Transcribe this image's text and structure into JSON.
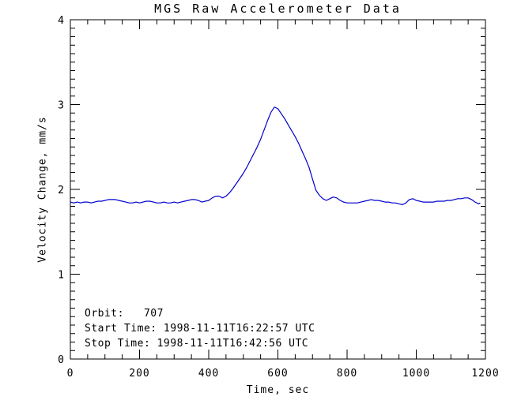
{
  "chart_data": {
    "type": "line",
    "title": "MGS Raw Accelerometer Data",
    "xlabel": "Time, sec",
    "ylabel": "Velocity Change, mm/s",
    "xlim": [
      0,
      1200
    ],
    "ylim": [
      0,
      4
    ],
    "xticks": [
      0,
      200,
      400,
      600,
      800,
      1000,
      1200
    ],
    "yticks": [
      0,
      1,
      2,
      3,
      4
    ],
    "x_minor_tick_step": 50,
    "y_minor_tick_step": 0.1,
    "grid": false,
    "legend": "none",
    "line_color": "#0000cd",
    "axis_color": "#000000",
    "background_color": "#ffffff",
    "annotations": [
      "Orbit:   707",
      "Start Time: 1998-11-11T16:22:57 UTC",
      "Stop Time: 1998-11-11T16:42:56 UTC"
    ],
    "series": [
      {
        "name": "velocity-change",
        "x": [
          0,
          10,
          20,
          30,
          40,
          50,
          60,
          70,
          80,
          90,
          100,
          110,
          120,
          130,
          140,
          150,
          160,
          170,
          180,
          190,
          200,
          210,
          220,
          230,
          240,
          250,
          260,
          270,
          280,
          290,
          300,
          310,
          320,
          330,
          340,
          350,
          360,
          370,
          380,
          390,
          400,
          410,
          420,
          430,
          440,
          450,
          460,
          470,
          480,
          490,
          500,
          510,
          520,
          530,
          540,
          550,
          560,
          570,
          580,
          590,
          600,
          610,
          620,
          630,
          640,
          650,
          660,
          670,
          680,
          690,
          700,
          710,
          720,
          730,
          740,
          750,
          760,
          770,
          780,
          790,
          800,
          810,
          820,
          830,
          840,
          850,
          860,
          870,
          880,
          890,
          900,
          910,
          920,
          930,
          940,
          950,
          960,
          970,
          980,
          990,
          1000,
          1010,
          1020,
          1030,
          1040,
          1050,
          1060,
          1070,
          1080,
          1090,
          1100,
          1110,
          1120,
          1130,
          1140,
          1150,
          1160,
          1170,
          1180,
          1185
        ],
        "y": [
          1.85,
          1.84,
          1.85,
          1.84,
          1.85,
          1.85,
          1.84,
          1.85,
          1.86,
          1.86,
          1.87,
          1.88,
          1.88,
          1.88,
          1.87,
          1.86,
          1.85,
          1.84,
          1.84,
          1.85,
          1.84,
          1.85,
          1.86,
          1.86,
          1.85,
          1.84,
          1.84,
          1.85,
          1.84,
          1.84,
          1.85,
          1.84,
          1.85,
          1.86,
          1.87,
          1.88,
          1.88,
          1.87,
          1.85,
          1.86,
          1.87,
          1.9,
          1.92,
          1.92,
          1.9,
          1.92,
          1.96,
          2.01,
          2.07,
          2.13,
          2.19,
          2.26,
          2.34,
          2.42,
          2.5,
          2.59,
          2.7,
          2.81,
          2.91,
          2.97,
          2.95,
          2.89,
          2.83,
          2.76,
          2.69,
          2.62,
          2.54,
          2.45,
          2.36,
          2.26,
          2.12,
          1.99,
          1.93,
          1.89,
          1.87,
          1.89,
          1.91,
          1.9,
          1.87,
          1.85,
          1.84,
          1.84,
          1.84,
          1.84,
          1.85,
          1.86,
          1.87,
          1.88,
          1.87,
          1.87,
          1.86,
          1.85,
          1.85,
          1.84,
          1.84,
          1.83,
          1.82,
          1.84,
          1.88,
          1.89,
          1.87,
          1.86,
          1.85,
          1.85,
          1.85,
          1.85,
          1.86,
          1.86,
          1.86,
          1.87,
          1.87,
          1.88,
          1.89,
          1.89,
          1.9,
          1.9,
          1.88,
          1.85,
          1.83,
          1.84
        ]
      }
    ]
  }
}
